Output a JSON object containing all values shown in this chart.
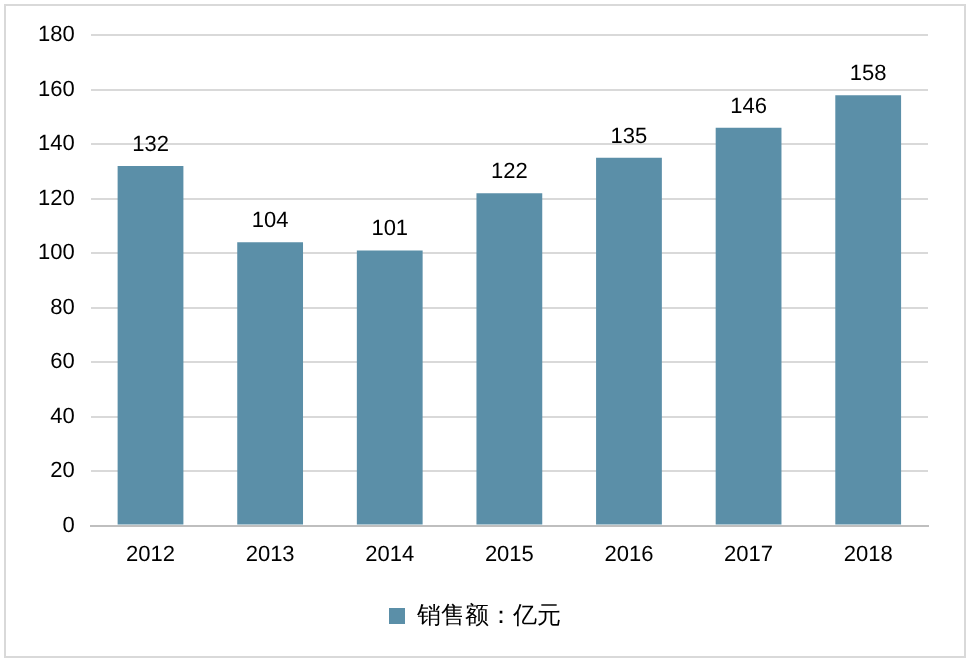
{
  "chart_data": {
    "type": "bar",
    "categories": [
      "2012",
      "2013",
      "2014",
      "2015",
      "2016",
      "2017",
      "2018"
    ],
    "series": [
      {
        "name": "销售额：亿元",
        "color": "#5b8fa8",
        "values": [
          132,
          104,
          101,
          122,
          135,
          146,
          158
        ]
      }
    ],
    "ylim": [
      0,
      180
    ],
    "yticks": [
      0,
      20,
      40,
      60,
      80,
      100,
      120,
      140,
      160,
      180
    ],
    "grid": "y",
    "legend": "bottom",
    "data_labels": true
  }
}
